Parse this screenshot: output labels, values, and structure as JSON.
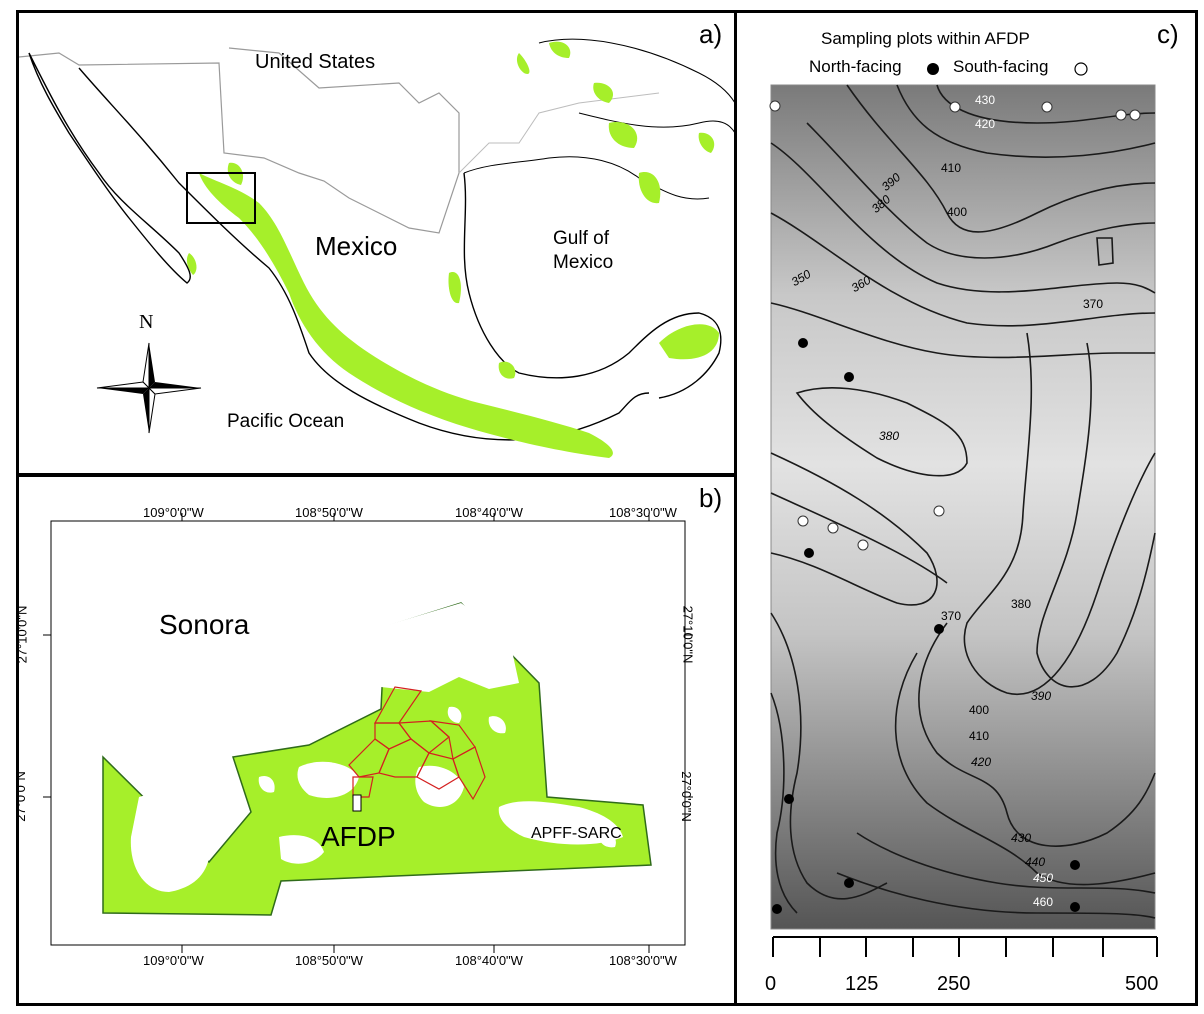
{
  "panel_a": {
    "letter": "a)",
    "labels": {
      "united_states": "United States",
      "mexico": "Mexico",
      "gulf": "Gulf of Mexico",
      "pacific": "Pacific Ocean",
      "north": "N"
    },
    "colors": {
      "vegetation": "#a6ef2a",
      "coast": "#000000",
      "border": "#9a9a9a"
    }
  },
  "panel_b": {
    "letter": "b)",
    "labels": {
      "sonora": "Sonora",
      "afdp": "AFDP",
      "apff": "APFF-SARC"
    },
    "lon_ticks": [
      "109°0'0\"W",
      "108°50'0\"W",
      "108°40'0\"W",
      "108°30'0\"W"
    ],
    "lat_ticks": [
      "27°10'0\"N",
      "27°0'0\"N"
    ],
    "colors": {
      "vegetation": "#a6ef2a",
      "outline": "#2f6b1a",
      "plots": "#d42020"
    }
  },
  "panel_c": {
    "letter": "c)",
    "title": "Sampling plots within AFDP",
    "legend": {
      "north": "North-facing",
      "south": "South-facing"
    },
    "contour_labels": [
      "430",
      "420",
      "410",
      "390",
      "380",
      "400",
      "350",
      "360",
      "370",
      "380",
      "370",
      "380",
      "390",
      "400",
      "410",
      "420",
      "430",
      "440",
      "450",
      "460"
    ],
    "scale_labels": [
      "0",
      "125",
      "250",
      "500"
    ]
  }
}
